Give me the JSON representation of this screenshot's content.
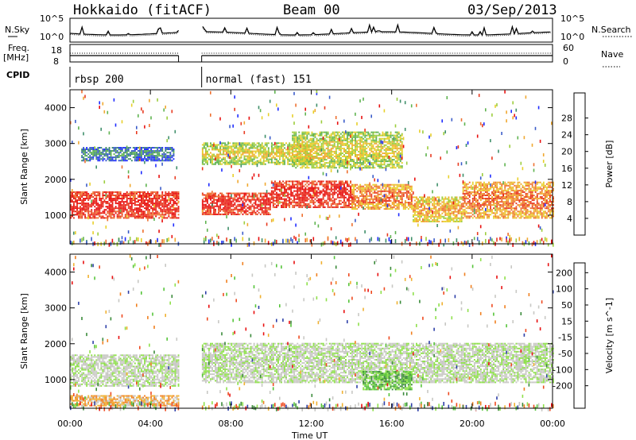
{
  "header": {
    "station": "Hokkaido (fitACF)",
    "beam": "Beam 00",
    "date": "03/Sep/2013"
  },
  "params": {
    "nsky_label": "N.Sky",
    "freq_label_1": "Freq.",
    "freq_label_2": "[MHz]",
    "cpid_label": "CPID",
    "nsearch_label": "N.Search",
    "nave_label": "Nave",
    "noise_ticks_left": [
      "10^5",
      "10^0"
    ],
    "noise_ticks_right": [
      "10^5",
      "10^0"
    ],
    "freq_ticks": [
      "18",
      "8"
    ],
    "nave_ticks": [
      "60",
      "0"
    ],
    "cpid_segments": [
      {
        "label": "rbsp 200",
        "start_h": 0.0,
        "end_h": 5.4
      },
      {
        "label": "normal (fast) 151",
        "start_h": 6.55,
        "end_h": 24.0
      }
    ]
  },
  "chart_data": [
    {
      "type": "heatmap",
      "title": "",
      "xlabel": "Time UT",
      "ylabel": "Slant Range [km]",
      "xlim": [
        0,
        24
      ],
      "ylim": [
        200,
        4500
      ],
      "x_ticks": [
        "00:00",
        "04:00",
        "08:00",
        "12:00",
        "16:00",
        "20:00",
        "00:00"
      ],
      "y_ticks": [
        "1000",
        "2000",
        "3000",
        "4000"
      ],
      "data_gap_h": [
        5.4,
        6.55
      ],
      "colorbar": {
        "label": "Power [dB]",
        "ticks": [
          "4",
          "8",
          "12",
          "16",
          "20",
          "24",
          "28"
        ],
        "colors": [
          "#1f2cff",
          "#3b5cc9",
          "#3f8f6a",
          "#5fb34f",
          "#9ccd3d",
          "#e8d02a",
          "#f0a830",
          "#ee7030",
          "#e83a20",
          "#e8100f"
        ]
      },
      "bands": [
        {
          "h0": 0.0,
          "h1": 5.4,
          "r0": 900,
          "r1": 1650,
          "level": 8
        },
        {
          "h0": 6.55,
          "h1": 10.0,
          "r0": 1000,
          "r1": 1600,
          "level": 8
        },
        {
          "h0": 10.0,
          "h1": 14.0,
          "r0": 1200,
          "r1": 1950,
          "level": 8
        },
        {
          "h0": 14.0,
          "h1": 17.0,
          "r0": 1150,
          "r1": 1850,
          "level": 6
        },
        {
          "h0": 17.0,
          "h1": 19.5,
          "r0": 800,
          "r1": 1500,
          "level": 5
        },
        {
          "h0": 19.5,
          "h1": 24.0,
          "r0": 900,
          "r1": 1900,
          "level": 6
        },
        {
          "h0": 6.55,
          "h1": 12.0,
          "r0": 2400,
          "r1": 3000,
          "level": 4
        },
        {
          "h0": 11.0,
          "h1": 16.5,
          "r0": 2300,
          "r1": 3300,
          "level": 4
        },
        {
          "h0": 0.5,
          "h1": 5.2,
          "r0": 2500,
          "r1": 2900,
          "level": 1
        }
      ]
    },
    {
      "type": "heatmap",
      "title": "",
      "xlabel": "Time UT",
      "ylabel": "Slant Range [km]",
      "xlim": [
        0,
        24
      ],
      "ylim": [
        200,
        4500
      ],
      "x_ticks": [
        "00:00",
        "04:00",
        "08:00",
        "12:00",
        "16:00",
        "20:00",
        "00:00"
      ],
      "y_ticks": [
        "1000",
        "2000",
        "3000",
        "4000"
      ],
      "data_gap_h": [
        5.4,
        6.55
      ],
      "colorbar": {
        "label": "Velocity [m s^-1]",
        "ticks": [
          "200",
          "100",
          "50",
          "15",
          "-15",
          "-50",
          "-100",
          "-200"
        ],
        "colors": [
          "#2d3fa8",
          "#3a8a3a",
          "#56c43a",
          "#8ee04a",
          "#c8c8c4",
          "#c8c8c4",
          "#f0b030",
          "#f08020",
          "#ee4a20",
          "#e81010"
        ]
      },
      "bands": [
        {
          "h0": 0.0,
          "h1": 5.4,
          "r0": 800,
          "r1": 1700,
          "level": 4
        },
        {
          "h0": 6.55,
          "h1": 24.0,
          "r0": 900,
          "r1": 2000,
          "level": 4
        },
        {
          "h0": 14.5,
          "h1": 17.0,
          "r0": 700,
          "r1": 1200,
          "level": 2
        },
        {
          "h0": 0.0,
          "h1": 5.4,
          "r0": 250,
          "r1": 550,
          "level": 6
        }
      ]
    }
  ]
}
